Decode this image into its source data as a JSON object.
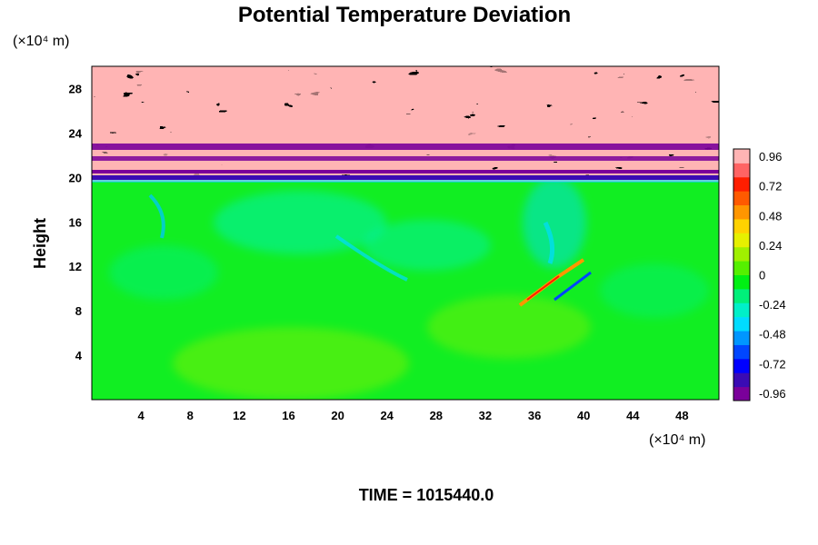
{
  "chart_data": {
    "type": "heatmap",
    "title": "Potential Temperature Deviation",
    "ylabel": "Height",
    "y_unit": "(×10⁴ m)",
    "x_unit": "(×10⁴ m)",
    "xlim": [
      0,
      51
    ],
    "ylim": [
      0,
      30
    ],
    "x_ticks": [
      "4",
      "8",
      "12",
      "16",
      "20",
      "24",
      "28",
      "32",
      "36",
      "40",
      "44",
      "48"
    ],
    "y_ticks": [
      "4",
      "8",
      "12",
      "16",
      "20",
      "24",
      "28"
    ],
    "colorbar": {
      "range": [
        -1.02,
        1.02
      ],
      "ticks": [
        "0.96",
        "0.72",
        "0.48",
        "0.24",
        "0",
        "-0.24",
        "-0.48",
        "-0.72",
        "-0.96"
      ],
      "colors": [
        "#7a009a",
        "#3a0bb4",
        "#0000ff",
        "#0046ff",
        "#0096ff",
        "#00dcff",
        "#00f0c8",
        "#00f07a",
        "#00f014",
        "#55f000",
        "#a0f000",
        "#e6f000",
        "#ffd200",
        "#ff9600",
        "#ff5a00",
        "#ff1e00",
        "#ff6464",
        "#ffb4b4"
      ]
    },
    "footer": "TIME = 1015440.0"
  }
}
